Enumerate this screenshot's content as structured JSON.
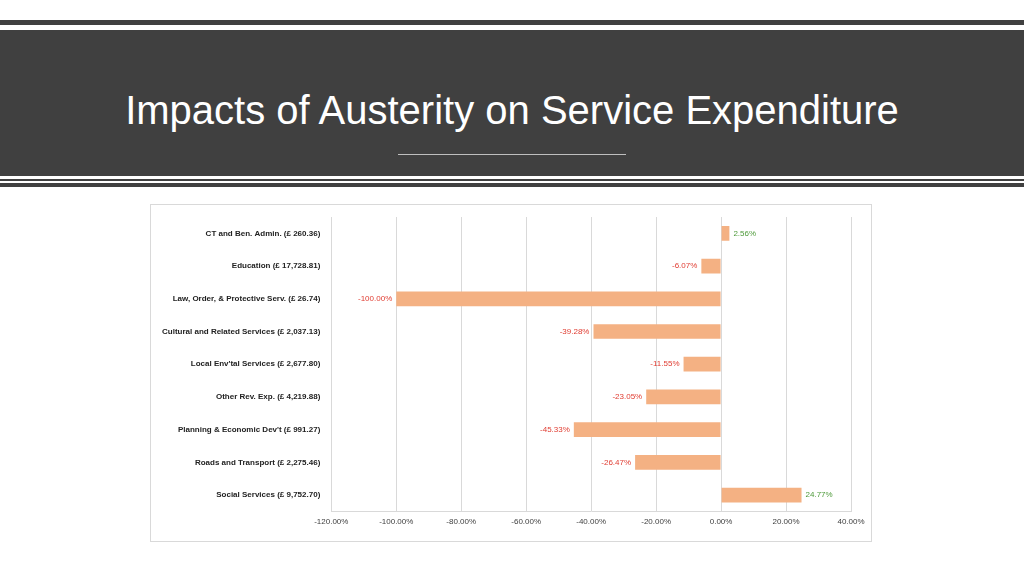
{
  "chart_data": {
    "type": "bar",
    "title": "Impacts of Austerity on Service Expenditure",
    "orientation": "horizontal",
    "categories": [
      "CT and Ben. Admin. (£ 260.36)",
      "Education (£ 17,728.81)",
      "Law, Order, & Protective Serv. (£ 26.74)",
      "Cultural and Related Services (£ 2,037.13)",
      "Local Env'tal Services (£ 2,677.80)",
      "Other Rev. Exp. (£ 4,219.88)",
      "Planning & Economic Dev't (£ 991.27)",
      "Roads and Transport (£ 2,275.46)",
      "Social Services (£ 9,752.70)"
    ],
    "values": [
      2.56,
      -6.07,
      -100,
      -39.28,
      -11.55,
      -23.05,
      -45.33,
      -26.47,
      24.77
    ],
    "value_labels": [
      "2.56%",
      "-6.07%",
      "-100.00%",
      "-39.28%",
      "-11.55%",
      "-23.05%",
      "-45.33%",
      "-26.47%",
      "24.77%"
    ],
    "data_labels": true,
    "color": "#f4b183",
    "xlim": [
      -120,
      40
    ],
    "xticks": [
      {
        "value": -120,
        "label": "-120.00%"
      },
      {
        "value": -100,
        "label": "-100.00%"
      },
      {
        "value": -80,
        "label": "-80.00%"
      },
      {
        "value": -60,
        "label": "-60.00%"
      },
      {
        "value": -40,
        "label": "-40.00%"
      },
      {
        "value": -20,
        "label": "-20.00%"
      },
      {
        "value": 0,
        "label": "0.00%"
      },
      {
        "value": 20,
        "label": "20.00%"
      },
      {
        "value": 40,
        "label": "40.00%"
      }
    ],
    "grid": true
  }
}
